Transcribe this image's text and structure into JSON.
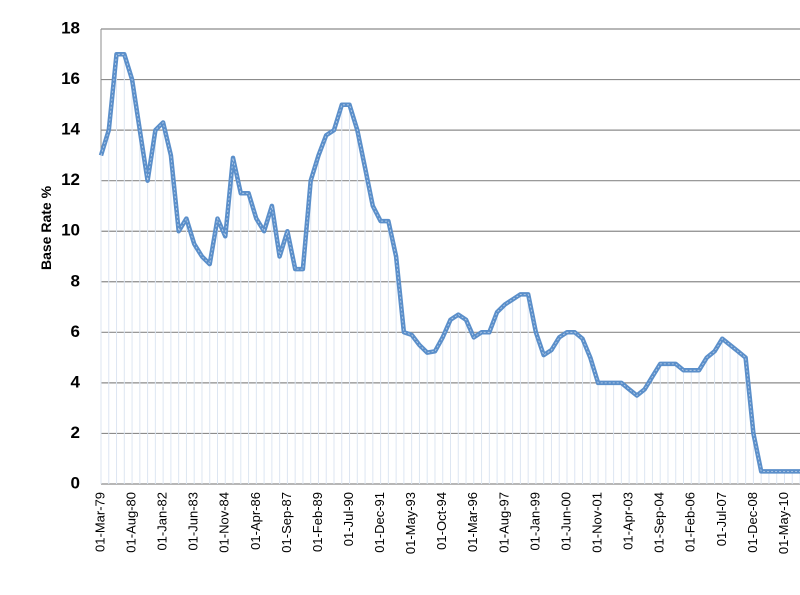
{
  "chart_data": {
    "type": "line",
    "y_label": "Base Rate %",
    "categories": [
      "01-Mar-79",
      null,
      null,
      null,
      "01-Aug-80",
      null,
      null,
      null,
      "01-Jan-82",
      null,
      null,
      null,
      "01-Jun-83",
      null,
      null,
      null,
      "01-Nov-84",
      null,
      null,
      null,
      "01-Apr-86",
      null,
      null,
      null,
      "01-Sep-87",
      null,
      null,
      null,
      "01-Feb-89",
      null,
      null,
      null,
      "01-Jul-90",
      null,
      null,
      null,
      "01-Dec-91",
      null,
      null,
      null,
      "01-May-93",
      null,
      null,
      null,
      "01-Oct-94",
      null,
      null,
      null,
      "01-Mar-96",
      null,
      null,
      null,
      "01-Aug-97",
      null,
      null,
      null,
      "01-Jan-99",
      null,
      null,
      null,
      "01-Jun-00",
      null,
      null,
      null,
      "01-Nov-01",
      null,
      null,
      null,
      "01-Apr-03",
      null,
      null,
      null,
      "01-Sep-04",
      null,
      null,
      null,
      "01-Feb-06",
      null,
      null,
      null,
      "01-Jul-07",
      null,
      null,
      null,
      "01-Dec-08",
      null,
      null,
      null,
      "01-May-10",
      null,
      null
    ],
    "series": [
      {
        "name": "Base Rate",
        "color": "#5b8fca",
        "values": [
          13,
          14,
          17,
          17,
          16,
          14,
          12,
          14,
          14.3,
          13,
          10,
          10.5,
          9.5,
          9,
          8.7,
          10.5,
          9.8,
          12.9,
          11.5,
          11.5,
          10.5,
          10,
          11,
          9,
          10,
          8.5,
          8.5,
          12,
          13,
          13.8,
          14,
          15,
          15,
          14,
          12.5,
          11,
          10.4,
          10.4,
          9,
          6,
          5.9,
          5.5,
          5.2,
          5.25,
          5.8,
          6.5,
          6.7,
          6.5,
          5.8,
          6,
          6,
          6.8,
          7.1,
          7.3,
          7.5,
          7.5,
          6,
          5.1,
          5.3,
          5.8,
          6,
          6,
          5.75,
          5,
          4,
          4,
          4,
          4,
          3.75,
          3.5,
          3.75,
          4.25,
          4.75,
          4.75,
          4.75,
          4.5,
          4.5,
          4.5,
          5,
          5.25,
          5.75,
          5.5,
          5.25,
          5,
          2,
          0.5,
          0.5,
          0.5,
          0.5,
          0.5,
          0.5
        ]
      }
    ],
    "ylim": [
      0,
      18
    ],
    "yticks": [
      0,
      2,
      4,
      6,
      8,
      10,
      12,
      14,
      16,
      18
    ],
    "grid": true,
    "legend": false
  }
}
